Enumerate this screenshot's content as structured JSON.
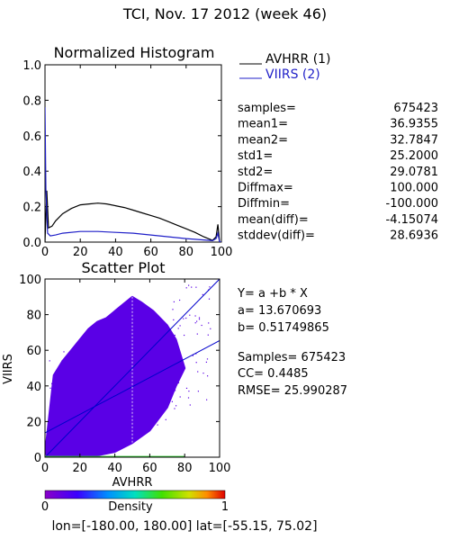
{
  "header": {
    "title": "TCI,  Nov. 17 2012 (week 46)"
  },
  "colors": {
    "avhrr": "#000000",
    "viirs": "#1f1fc8",
    "scatter": "#5a00e6",
    "fit_line": "#0000cc"
  },
  "chart_data": [
    {
      "type": "line",
      "title": "Normalized Histogram",
      "xlim": [
        0,
        100
      ],
      "ylim": [
        0.0,
        1.0
      ],
      "xticks": [
        "0",
        "20",
        "40",
        "60",
        "80",
        "100"
      ],
      "yticks": [
        "0.0",
        "0.2",
        "0.4",
        "0.6",
        "0.8",
        "1.0"
      ],
      "series": [
        {
          "name": "AVHRR (1)",
          "color": "#000000",
          "x": [
            0,
            1,
            2,
            4,
            6,
            10,
            15,
            20,
            25,
            30,
            35,
            40,
            45,
            50,
            55,
            60,
            65,
            70,
            75,
            80,
            85,
            90,
            95,
            97,
            98,
            99,
            100
          ],
          "values": [
            0.0,
            0.29,
            0.08,
            0.09,
            0.12,
            0.16,
            0.19,
            0.21,
            0.215,
            0.22,
            0.215,
            0.205,
            0.195,
            0.18,
            0.165,
            0.15,
            0.135,
            0.115,
            0.095,
            0.075,
            0.055,
            0.03,
            0.01,
            0.03,
            0.1,
            0.0,
            0.0
          ]
        },
        {
          "name": "VIIRS (2)",
          "color": "#1f1fc8",
          "x": [
            0,
            0.5,
            1.5,
            3,
            6,
            10,
            20,
            30,
            40,
            50,
            60,
            70,
            80,
            90,
            95,
            97,
            98,
            99,
            100
          ],
          "values": [
            0.76,
            0.3,
            0.05,
            0.035,
            0.04,
            0.05,
            0.06,
            0.06,
            0.055,
            0.05,
            0.04,
            0.03,
            0.02,
            0.012,
            0.008,
            0.02,
            0.05,
            0.0,
            0.0
          ]
        }
      ]
    },
    {
      "type": "scatter",
      "title": "Scatter Plot",
      "xlabel": "AVHRR",
      "ylabel": "VIIRS",
      "xlim": [
        0,
        100
      ],
      "ylim": [
        0,
        100
      ],
      "xticks": [
        "0",
        "20",
        "40",
        "60",
        "80",
        "100"
      ],
      "yticks": [
        "0",
        "20",
        "40",
        "60",
        "80",
        "100"
      ],
      "fit": {
        "a": 13.670693,
        "b": 0.51749865
      },
      "cloud_outline": {
        "x": [
          0,
          3,
          10,
          20,
          30,
          40,
          50,
          60,
          70,
          75,
          80,
          75,
          70,
          62,
          55,
          50,
          45,
          40,
          35,
          30,
          25,
          20,
          15,
          10,
          5,
          0
        ],
        "y": [
          2,
          0,
          0,
          0,
          1,
          3,
          8,
          15,
          28,
          40,
          50,
          66,
          74,
          82,
          87,
          90,
          86,
          82,
          78,
          76,
          72,
          66,
          60,
          54,
          46,
          2
        ]
      },
      "colorbar": {
        "label": "Density",
        "min": "0",
        "max": "1"
      }
    }
  ],
  "stats": [
    {
      "label": "samples=",
      "value": "675423"
    },
    {
      "label": "mean1=",
      "value": "36.9355"
    },
    {
      "label": "mean2=",
      "value": "32.7847"
    },
    {
      "label": "std1=",
      "value": "25.2000"
    },
    {
      "label": "std2=",
      "value": "29.0781"
    },
    {
      "label": "Diffmax=",
      "value": "100.000"
    },
    {
      "label": "Diffmin=",
      "value": "-100.000"
    },
    {
      "label": "mean(diff)=",
      "value": "-4.15074"
    },
    {
      "label": "stddev(diff)=",
      "value": "28.6936"
    }
  ],
  "regression": {
    "equation": "Y= a +b * X",
    "a_line": "a= 13.670693",
    "b_line": "b= 0.51749865",
    "samples_line": "Samples= 675423",
    "cc_line": "CC=  0.4485",
    "rmse_line": "RMSE= 25.990287"
  },
  "footer": {
    "region": "lon=[-180.00, 180.00] lat=[-55.15, 75.02]"
  }
}
